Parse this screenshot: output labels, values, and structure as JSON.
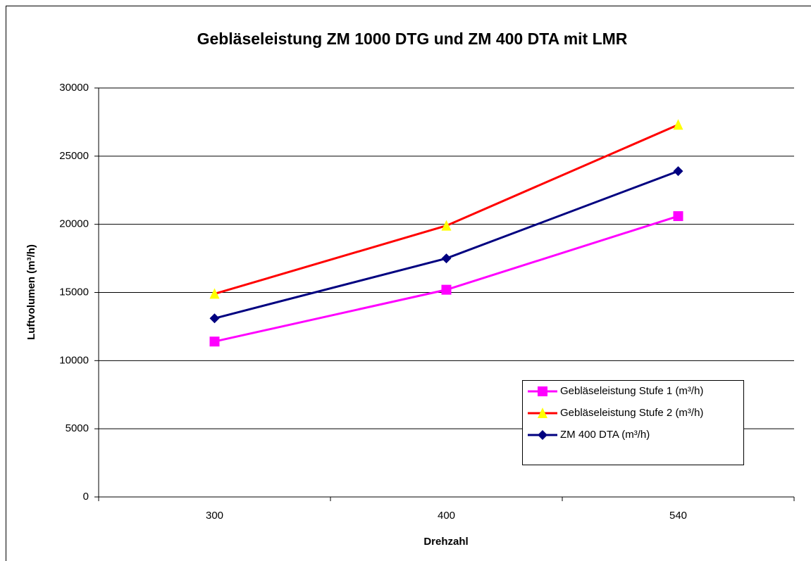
{
  "chart_data": {
    "type": "line",
    "title": "Gebläseleistung ZM 1000 DTG und ZM 400 DTA mit LMR",
    "x_label": "Drehzahl",
    "y_label": "Luftvolumen (m³/h)",
    "categories": [
      "300",
      "400",
      "540"
    ],
    "series": [
      {
        "name": "Gebläseleistung Stufe 1 (m³/h)",
        "color": "#ff00ff",
        "marker": "square",
        "marker_color": "#ff00ff",
        "values": [
          11400,
          15200,
          20600
        ]
      },
      {
        "name": "Gebläseleistung Stufe 2 (m³/h)",
        "color": "#ff0000",
        "marker": "triangle",
        "marker_color": "#ffff00",
        "values": [
          14900,
          19900,
          27300
        ]
      },
      {
        "name": "ZM 400 DTA (m³/h)",
        "color": "#000080",
        "marker": "diamond",
        "marker_color": "#000080",
        "values": [
          13100,
          17500,
          23900
        ]
      }
    ],
    "ylim": [
      0,
      30000
    ],
    "yticks": [
      0,
      5000,
      10000,
      15000,
      20000,
      25000,
      30000
    ],
    "grid": true
  }
}
